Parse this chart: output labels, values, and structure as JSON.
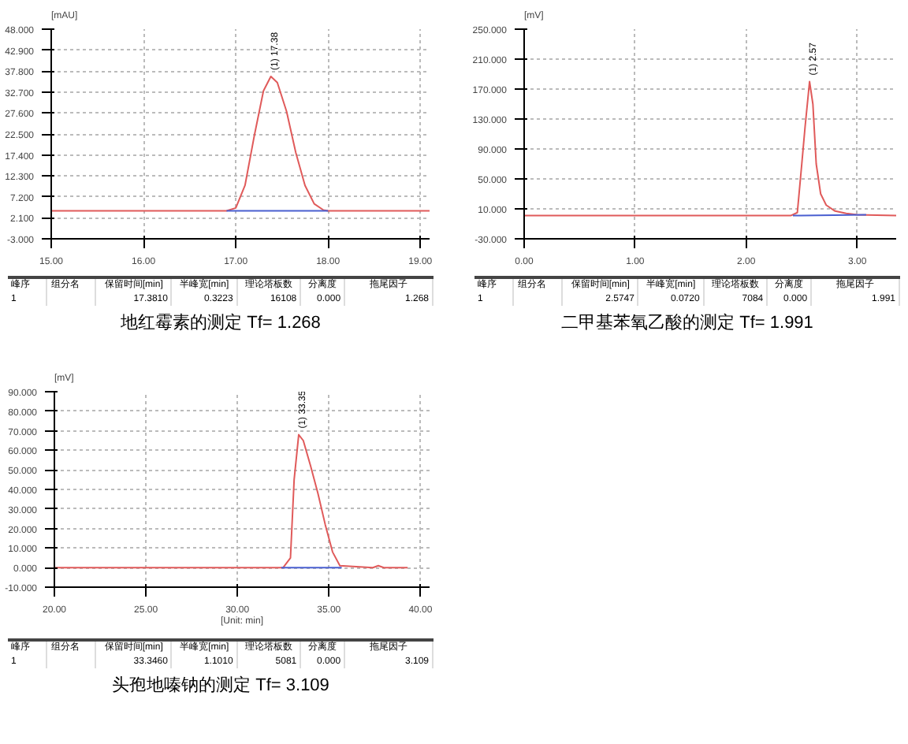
{
  "chart_data": [
    {
      "type": "line",
      "title": "地红霉素的测定  Tf= 1.268",
      "ylabel": "[mAU]",
      "grid": true,
      "xlim": [
        15,
        19.1
      ],
      "xticks": [
        {
          "value": 15,
          "label": "15.00"
        },
        {
          "value": 16,
          "label": "16.00"
        },
        {
          "value": 17,
          "label": "17.00"
        },
        {
          "value": 18,
          "label": "18.00"
        },
        {
          "value": 19,
          "label": "19.00"
        }
      ],
      "ylim": [
        -3,
        48
      ],
      "yticks": [
        {
          "value": -3,
          "label": "-3.000"
        },
        {
          "value": 2.1,
          "label": "2.100"
        },
        {
          "value": 7.2,
          "label": "7.200"
        },
        {
          "value": 12.3,
          "label": "12.300"
        },
        {
          "value": 17.4,
          "label": "17.400"
        },
        {
          "value": 22.5,
          "label": "22.500"
        },
        {
          "value": 27.6,
          "label": "27.600"
        },
        {
          "value": 32.7,
          "label": "32.700"
        },
        {
          "value": 37.8,
          "label": "37.800"
        },
        {
          "value": 42.9,
          "label": "42.900"
        },
        {
          "value": 48,
          "label": "48.000"
        }
      ],
      "series": [
        {
          "color": "#e05a5a",
          "x": [
            15,
            16.9,
            17.0,
            17.1,
            17.2,
            17.3,
            17.38,
            17.45,
            17.55,
            17.65,
            17.75,
            17.85,
            17.95,
            18.0,
            19.1
          ],
          "values": [
            3.8,
            3.8,
            4.5,
            10,
            22,
            33,
            36.5,
            35,
            28,
            18,
            10,
            5.5,
            4,
            3.8,
            3.8
          ]
        },
        {
          "color": "#4a5fd0",
          "x": [
            16.9,
            18.0
          ],
          "values": [
            3.8,
            3.8
          ]
        }
      ],
      "annotations": [
        {
          "text": "(1) 17.38",
          "x": 17.38,
          "y": 36.5
        },
        "峰序",
        "组分名",
        "保留时间[min]",
        "半峰宽[min]",
        "理论塔板数",
        "分离度",
        "拖尾因子",
        "1",
        "17.3810",
        "0.3223",
        "16108",
        "0.000",
        "1.268"
      ]
    },
    {
      "type": "line",
      "title": "二甲基苯氧乙酸的测定  Tf= 1.991",
      "ylabel": "[mV]",
      "grid": true,
      "xlim": [
        0,
        3.35
      ],
      "xticks": [
        {
          "value": 0,
          "label": "0.00"
        },
        {
          "value": 1,
          "label": "1.00"
        },
        {
          "value": 2,
          "label": "2.00"
        },
        {
          "value": 3,
          "label": "3.00"
        }
      ],
      "ylim": [
        -30,
        250
      ],
      "yticks": [
        {
          "value": -30,
          "label": "-30.000"
        },
        {
          "value": 10,
          "label": "10.000"
        },
        {
          "value": 50,
          "label": "50.000"
        },
        {
          "value": 90,
          "label": "90.000"
        },
        {
          "value": 130,
          "label": "130.000"
        },
        {
          "value": 170,
          "label": "170.000"
        },
        {
          "value": 210,
          "label": "210.000"
        },
        {
          "value": 250,
          "label": "250.000"
        }
      ],
      "series": [
        {
          "color": "#e05a5a",
          "x": [
            0,
            1.2,
            2.4,
            2.46,
            2.5,
            2.53,
            2.57,
            2.6,
            2.63,
            2.67,
            2.72,
            2.8,
            2.9,
            3.0,
            3.35
          ],
          "values": [
            1,
            1,
            1,
            5,
            70,
            120,
            180,
            150,
            70,
            30,
            15,
            7,
            4,
            2,
            1
          ]
        },
        {
          "color": "#4a5fd0",
          "x": [
            2.42,
            3.08
          ],
          "values": [
            1,
            2
          ]
        }
      ],
      "annotations": [
        {
          "text": "(1) 2.57",
          "x": 2.57,
          "y": 180
        },
        "峰序",
        "组分名",
        "保留时间[min]",
        "半峰宽[min]",
        "理论塔板数",
        "分离度",
        "拖尾因子",
        "1",
        "2.5747",
        "0.0720",
        "7084",
        "0.000",
        "1.991"
      ]
    },
    {
      "type": "line",
      "title": "头孢地嗪钠的测定  Tf= 3.109",
      "ylabel": "[mV]",
      "xlabel": "[Unit: min]",
      "grid": true,
      "xlim": [
        20,
        40.5
      ],
      "xticks": [
        {
          "value": 20,
          "label": "20.00"
        },
        {
          "value": 25,
          "label": "25.00"
        },
        {
          "value": 30,
          "label": "30.00"
        },
        {
          "value": 35,
          "label": "35.00"
        },
        {
          "value": 40,
          "label": "40.00"
        }
      ],
      "ylim": [
        -10,
        90
      ],
      "yticks": [
        {
          "value": -10,
          "label": "-10.000"
        },
        {
          "value": 0,
          "label": "0.000"
        },
        {
          "value": 10,
          "label": "10.000"
        },
        {
          "value": 20,
          "label": "20.000"
        },
        {
          "value": 30,
          "label": "30.000"
        },
        {
          "value": 40,
          "label": "40.000"
        },
        {
          "value": 50,
          "label": "50.000"
        },
        {
          "value": 60,
          "label": "60.000"
        },
        {
          "value": 70,
          "label": "70.000"
        },
        {
          "value": 80,
          "label": "80.000"
        },
        {
          "value": 90,
          "label": "90.000"
        }
      ],
      "series": [
        {
          "color": "#e05a5a",
          "x": [
            20,
            32.5,
            32.9,
            33.1,
            33.35,
            33.6,
            34.0,
            34.4,
            34.8,
            35.2,
            35.6,
            37.4,
            37.7,
            38.0,
            39.3
          ],
          "values": [
            0,
            0,
            5,
            45,
            68,
            65,
            52,
            38,
            22,
            8,
            1,
            0,
            1,
            0,
            0
          ]
        },
        {
          "color": "#4a5fd0",
          "x": [
            32.4,
            35.7
          ],
          "values": [
            0,
            0
          ]
        }
      ],
      "annotations": [
        {
          "text": "(1) 33.35",
          "x": 33.35,
          "y": 68
        },
        "峰序",
        "组分名",
        "保留时间[min]",
        "半峰宽[min]",
        "理论塔板数",
        "分离度",
        "拖尾因子",
        "1",
        "33.3460",
        "1.1010",
        "5081",
        "0.000",
        "3.109"
      ]
    }
  ]
}
